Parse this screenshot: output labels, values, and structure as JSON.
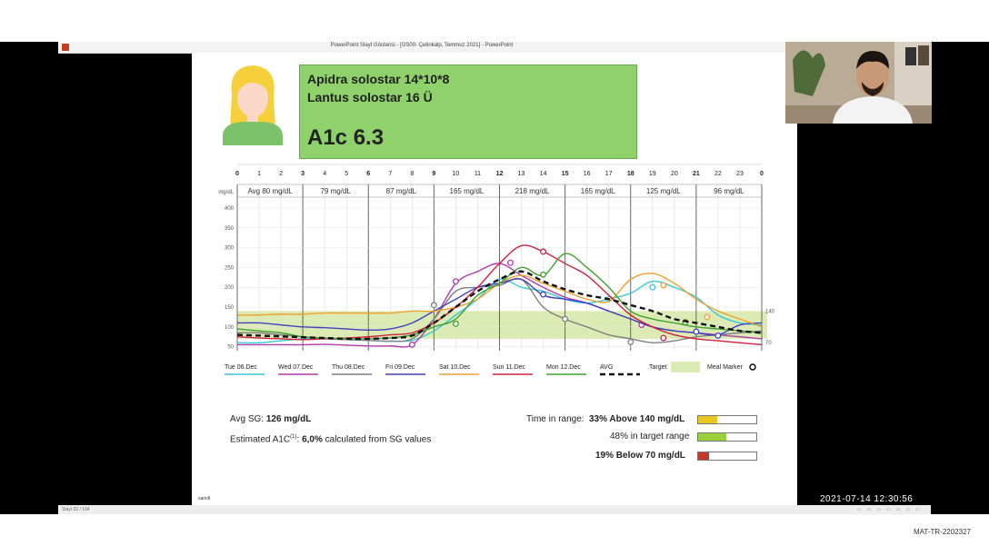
{
  "window": {
    "title": "PowerPoint Slayt Gösterisi - [GS00- Çetinkalp, Temmuz 2021] - PowerPoint"
  },
  "status_bar": {
    "slide_counter": "Slayt 22 / 104"
  },
  "timestamp": "2021-07-14  12:30:56",
  "footer_code": "MAT-TR-2202327",
  "info_box": {
    "line1": "Apidra solostar 14*10*8",
    "line2": "Lantus solostar 16 Ü",
    "a1c": "A1c 6.3"
  },
  "chart_data": {
    "type": "line",
    "hour_ticks": [
      "0",
      "1",
      "2",
      "3",
      "4",
      "5",
      "6",
      "7",
      "8",
      "9",
      "10",
      "11",
      "12",
      "13",
      "14",
      "15",
      "16",
      "17",
      "18",
      "19",
      "20",
      "21",
      "22",
      "23",
      "0"
    ],
    "ylabel": "mg/dL",
    "ylim": [
      40,
      400
    ],
    "y_ticks": [
      50,
      100,
      150,
      200,
      250,
      300,
      350,
      400
    ],
    "target_range": [
      70,
      140
    ],
    "reference_labels": [
      "140",
      "70"
    ],
    "period_averages": [
      "Avg 80 mg/dL",
      "79 mg/dL",
      "87 mg/dL",
      "165 mg/dL",
      "218 mg/dL",
      "165 mg/dL",
      "125 mg/dL",
      "96 mg/dL"
    ],
    "period_boundaries": [
      0,
      3,
      6,
      9,
      12,
      15,
      18,
      21,
      24
    ],
    "x": [
      0,
      1,
      2,
      3,
      4,
      5,
      6,
      7,
      8,
      9,
      10,
      11,
      12,
      13,
      14,
      15,
      16,
      17,
      18,
      19,
      20,
      21,
      22,
      23,
      24
    ],
    "series": [
      {
        "name": "Tue 06.Dec",
        "color": "#38c8d8",
        "values": [
          60,
          60,
          65,
          70,
          72,
          68,
          66,
          64,
          66,
          90,
          130,
          170,
          220,
          200,
          190,
          170,
          160,
          170,
          185,
          215,
          200,
          175,
          130,
          110,
          105
        ],
        "markers": [
          {
            "x": 17,
            "y": 170
          },
          {
            "x": 19,
            "y": 200
          }
        ]
      },
      {
        "name": "Wed 07.Dec",
        "color": "#b03ab0",
        "values": [
          55,
          55,
          55,
          55,
          56,
          54,
          52,
          52,
          55,
          120,
          210,
          240,
          260,
          230,
          200,
          175,
          160,
          140,
          120,
          100,
          90,
          85,
          80,
          75,
          70
        ],
        "markers": [
          {
            "x": 8,
            "y": 55
          },
          {
            "x": 10,
            "y": 215
          },
          {
            "x": 12.5,
            "y": 262
          },
          {
            "x": 18.5,
            "y": 105
          }
        ]
      },
      {
        "name": "Thu 08.Dec",
        "color": "#7f7f7f",
        "values": [
          85,
          85,
          80,
          75,
          70,
          68,
          66,
          64,
          70,
          120,
          190,
          200,
          205,
          220,
          150,
          120,
          100,
          80,
          70,
          60,
          65,
          75,
          80,
          85,
          90
        ],
        "markers": [
          {
            "x": 9,
            "y": 155
          },
          {
            "x": 15,
            "y": 120
          },
          {
            "x": 18,
            "y": 62
          }
        ]
      },
      {
        "name": "Fri 09.Dec",
        "color": "#4040c0",
        "values": [
          110,
          110,
          105,
          100,
          98,
          95,
          92,
          95,
          110,
          140,
          170,
          200,
          210,
          220,
          180,
          170,
          160,
          140,
          120,
          100,
          90,
          85,
          80,
          105,
          110
        ],
        "markers": [
          {
            "x": 14,
            "y": 182
          },
          {
            "x": 21,
            "y": 88
          },
          {
            "x": 22,
            "y": 78
          }
        ]
      },
      {
        "name": "Sat 10.Dec",
        "color": "#f0a030",
        "values": [
          130,
          130,
          132,
          132,
          135,
          135,
          135,
          135,
          140,
          140,
          150,
          170,
          210,
          230,
          210,
          190,
          170,
          165,
          220,
          235,
          210,
          170,
          140,
          120,
          100
        ],
        "markers": [
          {
            "x": 19.5,
            "y": 205
          },
          {
            "x": 21.5,
            "y": 125
          }
        ]
      },
      {
        "name": "Sun 11.Dec",
        "color": "#d02040",
        "values": [
          75,
          72,
          70,
          68,
          70,
          72,
          75,
          80,
          85,
          110,
          150,
          200,
          260,
          305,
          290,
          260,
          230,
          180,
          130,
          100,
          80,
          70,
          65,
          60,
          55
        ],
        "markers": [
          {
            "x": 14,
            "y": 290
          },
          {
            "x": 19.5,
            "y": 72
          }
        ]
      },
      {
        "name": "Mon 12.Dec",
        "color": "#40a030",
        "values": [
          95,
          90,
          85,
          75,
          72,
          70,
          70,
          72,
          80,
          100,
          120,
          180,
          210,
          250,
          230,
          285,
          250,
          200,
          140,
          120,
          110,
          100,
          95,
          90,
          85
        ],
        "markers": [
          {
            "x": 10,
            "y": 108
          },
          {
            "x": 14,
            "y": 232
          },
          {
            "x": 20.5,
            "y": 112
          }
        ]
      },
      {
        "name": "AVG",
        "color": "#111111",
        "dashed": true,
        "values": [
          80,
          78,
          76,
          74,
          72,
          70,
          70,
          72,
          78,
          110,
          150,
          190,
          220,
          240,
          215,
          195,
          180,
          170,
          155,
          140,
          120,
          110,
          100,
          90,
          85
        ]
      }
    ],
    "legend_extra": {
      "target": "Target",
      "meal_marker": "Meal Marker"
    }
  },
  "stats": {
    "avg_sg_label": "Avg SG:",
    "avg_sg_value": "126 mg/dL",
    "estimated_prefix": "Estimated A1C",
    "estimated_sup": "(1)",
    "estimated_value": "6,0%",
    "estimated_suffix": "calculated from SG values",
    "time_in_range_label": "Time in range:",
    "above_label": "33% Above 140 mg/dL",
    "above_fraction": 0.33,
    "above_color": "#e8c820",
    "in_range_label": "48% in target range",
    "in_range_fraction": 0.48,
    "in_range_color": "#9ccf3c",
    "below_label": "19% Below 70 mg/dL",
    "below_fraction": 0.19,
    "below_color": "#c0392b"
  },
  "slide_logo": "sanofi"
}
